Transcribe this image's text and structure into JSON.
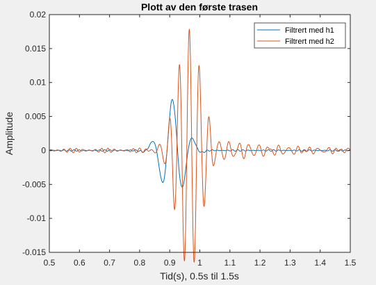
{
  "chart_data": {
    "type": "line",
    "title": "Plott av den første trasen",
    "xlabel": "Tid(s), 0.5s til 1.5s",
    "ylabel": "Amplitude",
    "xlim": [
      0.5,
      1.5
    ],
    "ylim": [
      -0.015,
      0.02
    ],
    "xticks": [
      0.5,
      0.6,
      0.7,
      0.8,
      0.9,
      1,
      1.1,
      1.2,
      1.3,
      1.4,
      1.5
    ],
    "xtick_labels": [
      "0.5",
      "0.6",
      "0.7",
      "0.8",
      "0.9",
      "1",
      "1.1",
      "1.2",
      "1.3",
      "1.4",
      "1.5"
    ],
    "yticks": [
      -0.015,
      -0.01,
      -0.005,
      0,
      0.005,
      0.01,
      0.015,
      0.02
    ],
    "ytick_labels": [
      "-0.015",
      "-0.01",
      "-0.005",
      "0",
      "0.005",
      "0.01",
      "0.015",
      "0.02"
    ],
    "grid": false,
    "legend_position": "top-right",
    "series": [
      {
        "name": "Filtrert med h1",
        "color": "#0072bd",
        "kind": "wavelet",
        "center": 0.912,
        "width": 0.038,
        "period": 0.07,
        "amplitude": 0.0075,
        "phase": 0.3,
        "noise_amplitude": 0.00012,
        "noise_period": 0.017,
        "note_peaks": {
          "max": 0.0072,
          "min": -0.0067
        }
      },
      {
        "name": "Filtrert med h2",
        "color": "#d95319",
        "kind": "wavelet",
        "center": 0.965,
        "width": 0.04,
        "period": 0.033,
        "amplitude": 0.0178,
        "phase": 0.0,
        "tail_decay": 0.22,
        "noise_amplitude": 0.00035,
        "noise_period": 0.021,
        "note_peaks": {
          "max": 0.0177,
          "min": -0.013
        }
      }
    ]
  }
}
